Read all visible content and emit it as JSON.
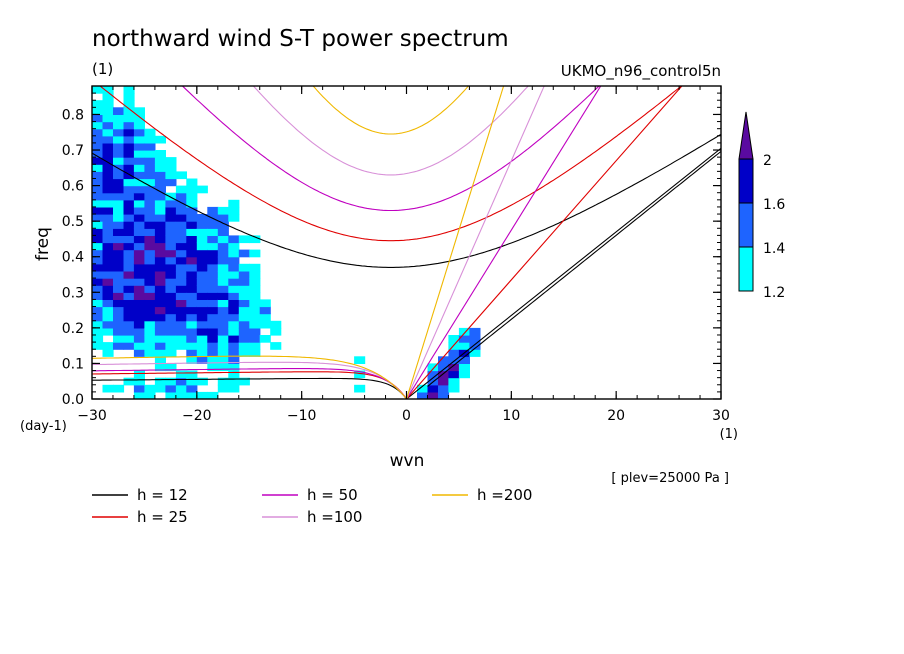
{
  "header": {
    "title": "northward wind S-T power spectrum",
    "units": "(1)",
    "model": "UKMO_n96_control5n"
  },
  "footer": {
    "level": "[ plev=25000 Pa ]"
  },
  "legend_items": [
    {
      "label": "h = 12",
      "color": "#000000"
    },
    {
      "label": "h = 25",
      "color": "#e00000"
    },
    {
      "label": "h = 50",
      "color": "#c000c0"
    },
    {
      "label": "h =100",
      "color": "#d890d8"
    },
    {
      "label": "h =200",
      "color": "#f0b800"
    }
  ],
  "colorbar": {
    "labels": [
      "1.2",
      "1.4",
      "1.6",
      "2"
    ],
    "colors": [
      "#00ffff",
      "#1e64ff",
      "#0000c8",
      "#5a0aa0"
    ]
  },
  "chart_data": {
    "type": "heatmap",
    "xlabel": "wvn",
    "ylabel": "freq",
    "x_unit": "(1)",
    "y_unit": "(day-1)",
    "xlim": [
      -30,
      30
    ],
    "ylim": [
      0,
      0.88
    ],
    "x_ticks": [
      -30,
      -20,
      -10,
      0,
      10,
      20,
      30
    ],
    "x_tick_labels": [
      "-30",
      "-20",
      "-10",
      "0",
      "10",
      "20",
      "30"
    ],
    "y_ticks": [
      0,
      0.1,
      0.2,
      0.3,
      0.4,
      0.5,
      0.6,
      0.7,
      0.8
    ],
    "y_tick_labels": [
      "0.0",
      "0.1",
      "0.2",
      "0.3",
      "0.4",
      "0.5",
      "0.6",
      "0.7",
      "0.8"
    ],
    "contour_levels": [
      1.2,
      1.4,
      1.6,
      2
    ],
    "regions": [
      {
        "level": 1,
        "x": [
          -30,
          -15
        ],
        "y": [
          0.05,
          0.88
        ]
      },
      {
        "level": 2,
        "x": [
          -29,
          -18
        ],
        "y": [
          0.2,
          0.55
        ]
      },
      {
        "level": 3,
        "x": [
          -25,
          -19
        ],
        "y": [
          0.3,
          0.44
        ]
      },
      {
        "level": 2,
        "x": [
          1,
          5
        ],
        "y": [
          0.0,
          0.2
        ]
      },
      {
        "level": 3,
        "x": [
          1.5,
          3
        ],
        "y": [
          0.0,
          0.06
        ]
      }
    ],
    "dispersion_curves": [
      {
        "h": 12,
        "color": "#000000",
        "er_n1_min": 0.37,
        "er_n1_x": -1.5,
        "kelvin_slope": 0.0235,
        "mrg_max": 0.06
      },
      {
        "h": 25,
        "color": "#e00000",
        "ig_min": 0.445,
        "kelvin_slope": 0.0335,
        "mrg_max": 0.08
      },
      {
        "h": 50,
        "color": "#c000c0",
        "ig_min": 0.53,
        "kelvin_slope": 0.0475,
        "mrg_max": 0.09
      },
      {
        "h": 100,
        "color": "#d890d8",
        "ig_min": 0.63,
        "kelvin_slope": 0.067,
        "mrg_max": 0.11
      },
      {
        "h": 200,
        "color": "#f0b800",
        "ig_min": 0.745,
        "kelvin_slope": 0.095,
        "mrg_max": 0.13
      }
    ]
  }
}
